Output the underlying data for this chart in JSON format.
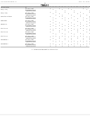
{
  "background_color": "#ffffff",
  "text_color": "#222222",
  "gray_color": "#777777",
  "header_left": "US 20130034535 A1",
  "header_right": "Feb. 12, 2013",
  "page_num": "11",
  "table_title": "TABLE 3",
  "table_subtitle": "CONTINUED",
  "col_header": "                                                                                          1   2   3   4   5   6   7   8   9  10  11  12  13  14",
  "col_header2": "Salt",
  "sections": [
    {
      "label": "SPF (in vitro)",
      "sub": [
        {
          "salt": "Ethylamine salt",
          "marks": [
            1,
            0,
            0,
            1,
            0,
            0,
            1,
            0,
            0,
            0,
            0,
            1,
            0,
            0
          ]
        },
        {
          "salt": "Diethanolamine salt",
          "marks": [
            0,
            1,
            0,
            0,
            1,
            0,
            0,
            1,
            0,
            0,
            0,
            0,
            1,
            0
          ]
        },
        {
          "salt": "Triethanolamine salt",
          "marks": [
            0,
            0,
            1,
            0,
            0,
            1,
            0,
            0,
            1,
            0,
            0,
            0,
            0,
            1
          ]
        }
      ]
    },
    {
      "label": "SPF (in vivo)",
      "sub": [
        {
          "salt": "Ethylamine salt",
          "marks": [
            1,
            0,
            1,
            0,
            0,
            1,
            0,
            0,
            1,
            0,
            1,
            0,
            0,
            1
          ]
        },
        {
          "salt": "Diethanolamine salt",
          "marks": [
            0,
            1,
            0,
            1,
            0,
            0,
            1,
            0,
            0,
            1,
            0,
            1,
            0,
            0
          ]
        },
        {
          "salt": "Triethanolamine salt",
          "marks": [
            0,
            0,
            1,
            0,
            1,
            0,
            0,
            1,
            0,
            0,
            1,
            0,
            1,
            0
          ]
        }
      ]
    },
    {
      "label": "SPF water resistance",
      "sub": [
        {
          "salt": "Ethylamine salt",
          "marks": [
            1,
            0,
            0,
            1,
            1,
            0,
            0,
            0,
            1,
            0,
            1,
            0,
            0,
            1
          ]
        },
        {
          "salt": "Diethanolamine salt",
          "marks": [
            0,
            1,
            0,
            0,
            0,
            1,
            0,
            1,
            0,
            0,
            0,
            1,
            0,
            1
          ]
        },
        {
          "salt": "Triethanolamine salt",
          "marks": [
            0,
            0,
            1,
            0,
            1,
            0,
            1,
            0,
            0,
            1,
            0,
            0,
            1,
            0
          ]
        }
      ]
    },
    {
      "label": "Substantivity",
      "sub": [
        {
          "salt": "Ethylamine salt",
          "marks": [
            0,
            1,
            0,
            0,
            0,
            1,
            0,
            0,
            1,
            0,
            0,
            1,
            0,
            1
          ]
        },
        {
          "salt": "Diethanolamine salt",
          "marks": [
            1,
            0,
            1,
            0,
            0,
            0,
            1,
            0,
            0,
            1,
            0,
            0,
            1,
            0
          ]
        },
        {
          "salt": "Triethanolamine salt",
          "marks": [
            0,
            1,
            0,
            1,
            0,
            0,
            0,
            1,
            0,
            0,
            1,
            0,
            0,
            1
          ]
        }
      ]
    },
    {
      "label": "Photostability",
      "sub": [
        {
          "salt": "Ethylamine salt",
          "marks": [
            1,
            0,
            1,
            0,
            1,
            0,
            1,
            0,
            1,
            0,
            1,
            0,
            1,
            0
          ]
        },
        {
          "salt": "Diethanolamine salt",
          "marks": [
            0,
            1,
            0,
            1,
            0,
            1,
            0,
            1,
            0,
            1,
            0,
            1,
            0,
            1
          ]
        },
        {
          "salt": "Triethanolamine salt",
          "marks": [
            1,
            0,
            1,
            0,
            1,
            0,
            1,
            0,
            1,
            0,
            1,
            0,
            1,
            0
          ]
        }
      ]
    },
    {
      "label": "Stability pH 3",
      "sub": [
        {
          "salt": "Ethylamine salt",
          "marks": [
            0,
            0,
            1,
            1,
            0,
            0,
            1,
            1,
            0,
            0,
            1,
            1,
            0,
            0
          ]
        },
        {
          "salt": "Diethanolamine salt",
          "marks": [
            1,
            1,
            0,
            0,
            1,
            1,
            0,
            0,
            1,
            1,
            0,
            0,
            1,
            1
          ]
        },
        {
          "salt": "Triethanolamine salt",
          "marks": [
            0,
            1,
            0,
            1,
            0,
            1,
            0,
            1,
            0,
            1,
            0,
            1,
            0,
            1
          ]
        }
      ]
    },
    {
      "label": "Stability pH 5",
      "sub": [
        {
          "salt": "Ethylamine salt",
          "marks": [
            1,
            0,
            0,
            1,
            0,
            0,
            1,
            0,
            0,
            1,
            0,
            0,
            1,
            0
          ]
        },
        {
          "salt": "Diethanolamine salt",
          "marks": [
            0,
            1,
            0,
            0,
            1,
            0,
            0,
            1,
            0,
            0,
            1,
            0,
            0,
            1
          ]
        },
        {
          "salt": "Triethanolamine salt",
          "marks": [
            0,
            0,
            1,
            0,
            0,
            1,
            0,
            0,
            1,
            0,
            0,
            1,
            0,
            0
          ]
        }
      ]
    },
    {
      "label": "Stability pH 7",
      "sub": [
        {
          "salt": "Ethylamine salt",
          "marks": [
            0,
            1,
            1,
            0,
            1,
            1,
            0,
            1,
            1,
            0,
            1,
            1,
            0,
            0
          ]
        },
        {
          "salt": "Diethanolamine salt",
          "marks": [
            1,
            0,
            0,
            1,
            0,
            0,
            1,
            0,
            0,
            1,
            0,
            0,
            1,
            1
          ]
        },
        {
          "salt": "Triethanolamine salt",
          "marks": [
            0,
            1,
            0,
            1,
            0,
            1,
            0,
            1,
            0,
            1,
            0,
            1,
            0,
            1
          ]
        }
      ]
    },
    {
      "label": "Formulation 1",
      "sub": [
        {
          "salt": "Ethylamine salt",
          "marks": [
            1,
            0,
            1,
            0,
            0,
            1,
            0,
            1,
            0,
            0,
            0,
            1,
            0,
            1
          ]
        },
        {
          "salt": "Diethanolamine salt",
          "marks": [
            0,
            1,
            0,
            1,
            0,
            0,
            1,
            0,
            1,
            0,
            1,
            0,
            1,
            0
          ]
        },
        {
          "salt": "Triethanolamine salt",
          "marks": [
            0,
            0,
            1,
            0,
            1,
            0,
            0,
            1,
            0,
            1,
            0,
            1,
            0,
            1
          ]
        }
      ]
    },
    {
      "label": "Formulation 2",
      "sub": [
        {
          "salt": "Ethylamine salt",
          "marks": [
            1,
            1,
            0,
            0,
            1,
            1,
            0,
            0,
            1,
            1,
            0,
            0,
            1,
            1
          ]
        },
        {
          "salt": "Diethanolamine salt",
          "marks": [
            0,
            0,
            1,
            1,
            0,
            0,
            1,
            1,
            0,
            0,
            1,
            1,
            0,
            0
          ]
        },
        {
          "salt": "Triethanolamine salt",
          "marks": [
            1,
            0,
            1,
            0,
            1,
            0,
            1,
            0,
            1,
            0,
            1,
            0,
            1,
            0
          ]
        }
      ]
    }
  ],
  "footer_note": "X = tested formulation meets the stated criterion"
}
